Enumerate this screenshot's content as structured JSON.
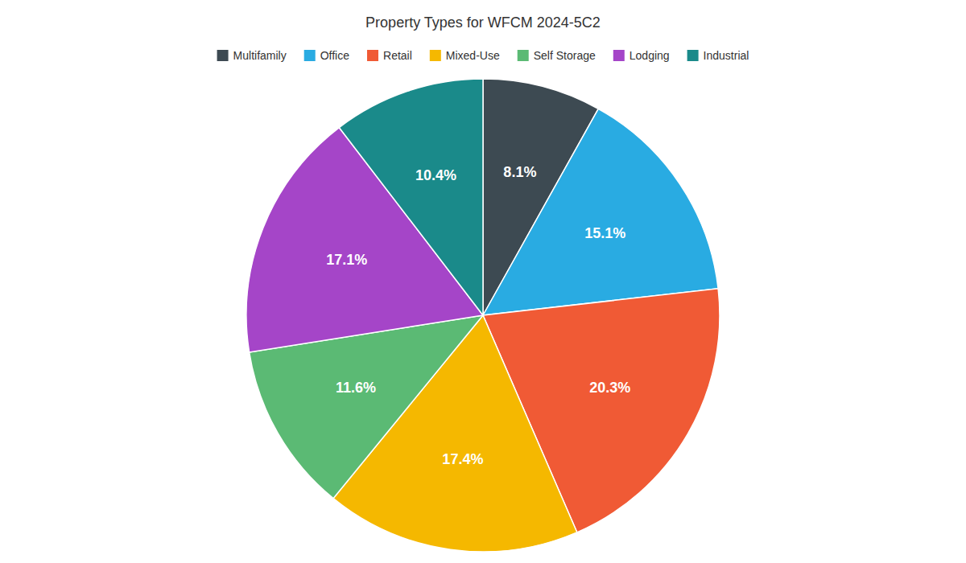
{
  "chart_data": {
    "type": "pie",
    "title": "Property Types for WFCM 2024-5C2",
    "categories": [
      "Multifamily",
      "Office",
      "Retail",
      "Mixed-Use",
      "Self Storage",
      "Lodging",
      "Industrial"
    ],
    "values": [
      8.1,
      15.1,
      20.3,
      17.4,
      11.6,
      17.1,
      10.4
    ],
    "value_labels": [
      "8.1%",
      "15.1%",
      "20.3%",
      "17.4%",
      "11.6%",
      "17.1%",
      "10.4%"
    ],
    "colors": [
      "#3d4a52",
      "#29abe2",
      "#f05a35",
      "#f5b800",
      "#5bba74",
      "#a545c8",
      "#1a8a8a"
    ],
    "data_labels": true,
    "legend": "top"
  }
}
